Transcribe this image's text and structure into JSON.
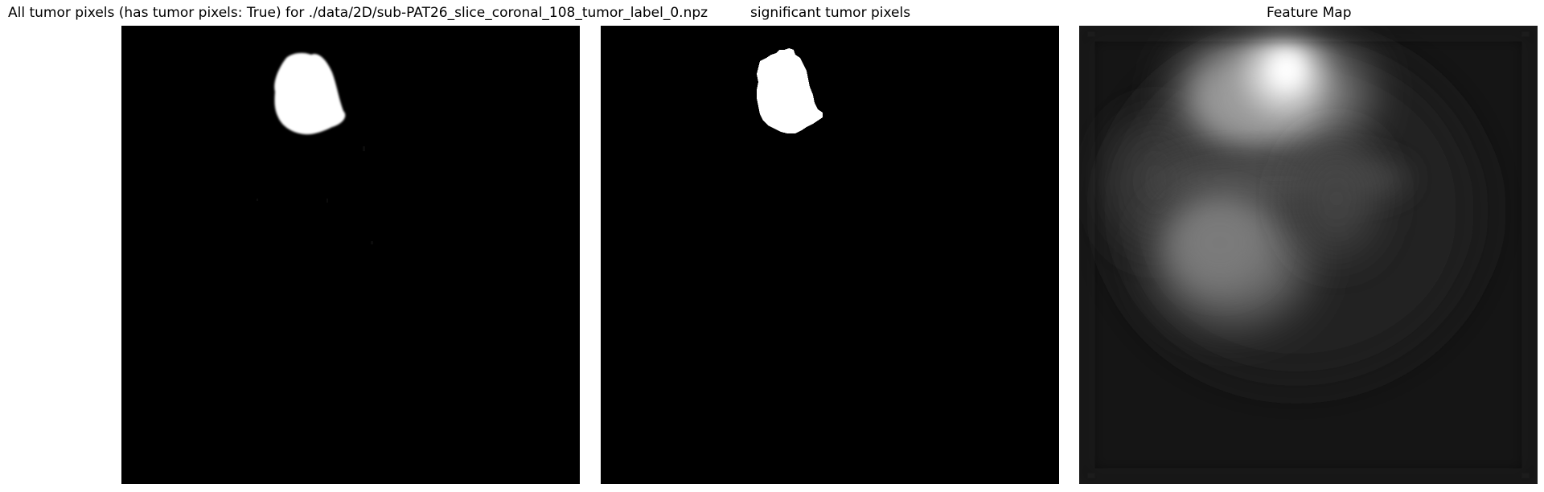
{
  "figure": {
    "panels": [
      {
        "title": "All tumor pixels (has tumor pixels: True) for ./data/2D/sub-PAT26_slice_coronal_108_tumor_label_0.npz"
      },
      {
        "title": "significant tumor pixels"
      },
      {
        "title": "Feature Map"
      }
    ]
  },
  "colors": {
    "background": "#ffffff",
    "image_background": "#000000",
    "mask": "#ffffff",
    "feature_base": "#151515"
  }
}
